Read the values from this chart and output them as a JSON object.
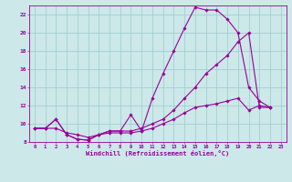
{
  "xlabel": "Windchill (Refroidissement éolien,°C)",
  "bg_color": "#cce8e8",
  "line_color": "#990099",
  "xlim": [
    -0.5,
    23.5
  ],
  "ylim": [
    8,
    23
  ],
  "xticks": [
    0,
    1,
    2,
    3,
    4,
    5,
    6,
    7,
    8,
    9,
    10,
    11,
    12,
    13,
    14,
    15,
    16,
    17,
    18,
    19,
    20,
    21,
    22,
    23
  ],
  "yticks": [
    8,
    10,
    12,
    14,
    16,
    18,
    20,
    22
  ],
  "grid_color": "#99cccc",
  "series1_x": [
    0,
    1,
    2,
    3,
    4,
    5,
    6,
    7,
    8,
    9,
    10,
    11,
    12,
    13,
    14,
    15,
    16,
    17,
    18,
    19,
    20,
    21,
    22
  ],
  "series1_y": [
    9.5,
    9.5,
    10.5,
    8.8,
    8.3,
    8.2,
    8.8,
    9.2,
    9.2,
    11.0,
    9.2,
    12.8,
    15.5,
    18.0,
    20.5,
    22.8,
    22.5,
    22.5,
    21.5,
    20.0,
    14.0,
    12.5,
    11.8
  ],
  "series2_x": [
    0,
    1,
    2,
    3,
    4,
    5,
    6,
    7,
    8,
    9,
    10,
    11,
    12,
    13,
    14,
    15,
    16,
    17,
    18,
    19,
    20,
    21,
    22
  ],
  "series2_y": [
    9.5,
    9.5,
    10.5,
    8.8,
    8.3,
    8.2,
    8.8,
    9.2,
    9.2,
    9.2,
    9.5,
    10.0,
    10.5,
    11.5,
    12.8,
    14.0,
    15.5,
    16.5,
    17.5,
    19.0,
    20.0,
    11.8,
    11.8
  ],
  "series3_x": [
    0,
    1,
    2,
    3,
    4,
    5,
    6,
    7,
    8,
    9,
    10,
    11,
    12,
    13,
    14,
    15,
    16,
    17,
    18,
    19,
    20,
    21,
    22
  ],
  "series3_y": [
    9.5,
    9.5,
    9.5,
    9.0,
    8.8,
    8.5,
    8.8,
    9.0,
    9.0,
    9.0,
    9.2,
    9.5,
    10.0,
    10.5,
    11.2,
    11.8,
    12.0,
    12.2,
    12.5,
    12.8,
    11.5,
    12.0,
    11.8
  ]
}
